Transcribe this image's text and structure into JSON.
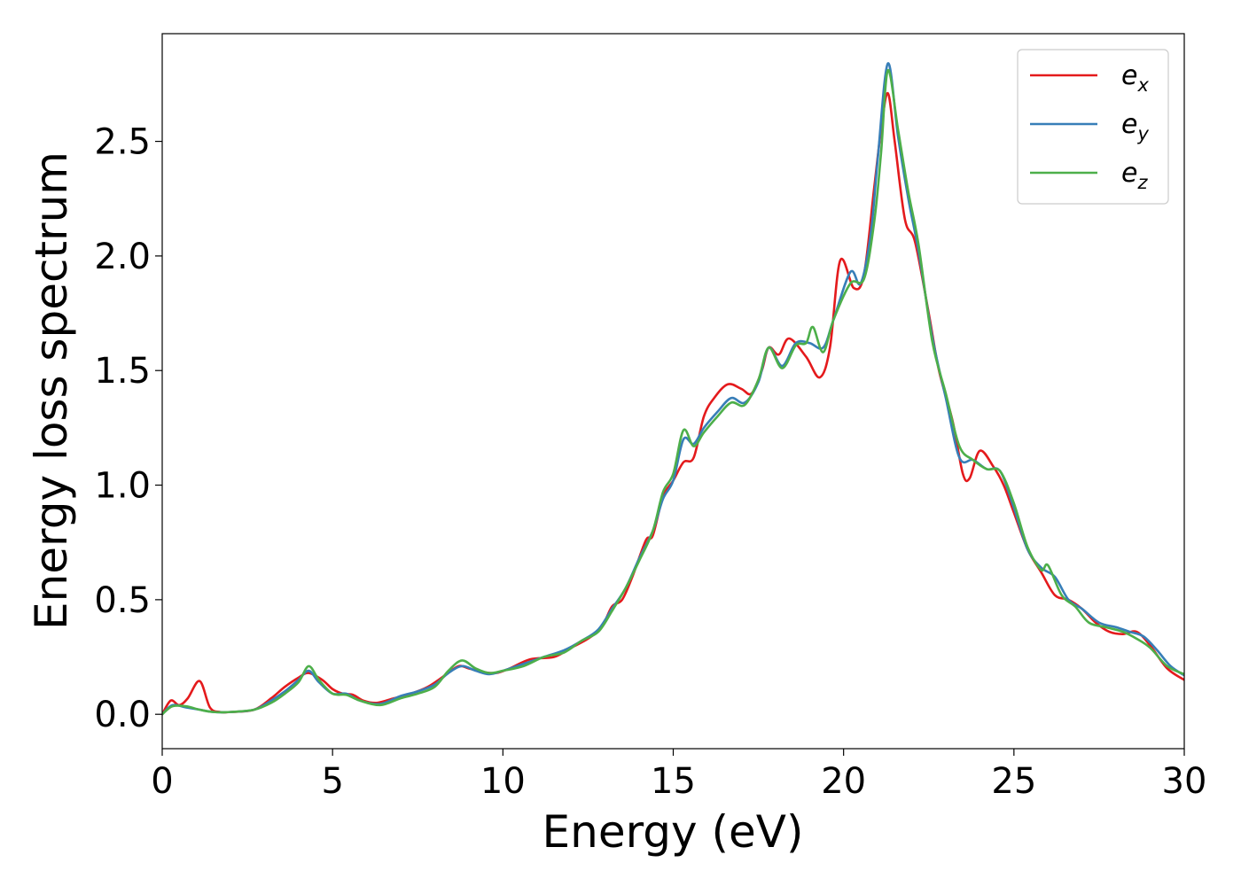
{
  "chart_data": {
    "type": "line",
    "title": "",
    "xlabel": "Energy (eV)",
    "ylabel": "Energy loss spectrum",
    "xlim": [
      0,
      30
    ],
    "ylim": [
      -0.15,
      2.97
    ],
    "xticks": [
      0,
      5,
      10,
      15,
      20,
      25,
      30
    ],
    "xtick_labels": [
      "0",
      "5",
      "10",
      "15",
      "20",
      "25",
      "30"
    ],
    "yticks": [
      0.0,
      0.5,
      1.0,
      1.5,
      2.0,
      2.5
    ],
    "ytick_labels": [
      "0.0",
      "0.5",
      "1.0",
      "1.5",
      "2.0",
      "2.5"
    ],
    "grid": false,
    "legend_position": "top-right",
    "series": [
      {
        "name": "e",
        "subscript": "x",
        "color": "#e41a1c",
        "points": [
          [
            0,
            0
          ],
          [
            0.25,
            0.06
          ],
          [
            0.5,
            0.04
          ],
          [
            0.75,
            0.07
          ],
          [
            1.1,
            0.145
          ],
          [
            1.4,
            0.03
          ],
          [
            1.7,
            0.01
          ],
          [
            2.0,
            0.01
          ],
          [
            2.7,
            0.02
          ],
          [
            3.2,
            0.07
          ],
          [
            3.6,
            0.12
          ],
          [
            4.0,
            0.16
          ],
          [
            4.3,
            0.18
          ],
          [
            4.7,
            0.15
          ],
          [
            5.0,
            0.11
          ],
          [
            5.3,
            0.09
          ],
          [
            5.6,
            0.085
          ],
          [
            5.9,
            0.06
          ],
          [
            6.3,
            0.05
          ],
          [
            6.8,
            0.07
          ],
          [
            7.3,
            0.09
          ],
          [
            7.8,
            0.12
          ],
          [
            8.3,
            0.17
          ],
          [
            8.7,
            0.21
          ],
          [
            9.0,
            0.2
          ],
          [
            9.4,
            0.185
          ],
          [
            9.8,
            0.18
          ],
          [
            10.2,
            0.2
          ],
          [
            10.8,
            0.24
          ],
          [
            11.5,
            0.25
          ],
          [
            12.0,
            0.29
          ],
          [
            12.5,
            0.33
          ],
          [
            12.9,
            0.38
          ],
          [
            13.2,
            0.47
          ],
          [
            13.5,
            0.5
          ],
          [
            13.8,
            0.6
          ],
          [
            14.2,
            0.76
          ],
          [
            14.4,
            0.78
          ],
          [
            14.7,
            0.95
          ],
          [
            15.0,
            1.02
          ],
          [
            15.3,
            1.1
          ],
          [
            15.6,
            1.12
          ],
          [
            15.9,
            1.3
          ],
          [
            16.2,
            1.38
          ],
          [
            16.6,
            1.44
          ],
          [
            17.0,
            1.42
          ],
          [
            17.3,
            1.4
          ],
          [
            17.6,
            1.5
          ],
          [
            17.8,
            1.6
          ],
          [
            18.1,
            1.57
          ],
          [
            18.4,
            1.64
          ],
          [
            18.9,
            1.56
          ],
          [
            19.3,
            1.47
          ],
          [
            19.6,
            1.6
          ],
          [
            19.9,
            1.98
          ],
          [
            20.3,
            1.86
          ],
          [
            20.6,
            1.92
          ],
          [
            20.9,
            2.3
          ],
          [
            21.1,
            2.55
          ],
          [
            21.3,
            2.71
          ],
          [
            21.5,
            2.5
          ],
          [
            21.8,
            2.16
          ],
          [
            22.1,
            2.06
          ],
          [
            22.5,
            1.75
          ],
          [
            22.8,
            1.5
          ],
          [
            23.2,
            1.28
          ],
          [
            23.5,
            1.05
          ],
          [
            23.7,
            1.03
          ],
          [
            24.0,
            1.15
          ],
          [
            24.4,
            1.08
          ],
          [
            24.7,
            1.0
          ],
          [
            25.0,
            0.88
          ],
          [
            25.4,
            0.72
          ],
          [
            25.8,
            0.62
          ],
          [
            26.2,
            0.52
          ],
          [
            26.6,
            0.5
          ],
          [
            27.0,
            0.46
          ],
          [
            27.4,
            0.4
          ],
          [
            27.8,
            0.36
          ],
          [
            28.2,
            0.35
          ],
          [
            28.6,
            0.36
          ],
          [
            29.0,
            0.3
          ],
          [
            29.5,
            0.2
          ],
          [
            30.0,
            0.15
          ]
        ]
      },
      {
        "name": "e",
        "subscript": "y",
        "color": "#377eb8",
        "points": [
          [
            0,
            0
          ],
          [
            0.3,
            0.04
          ],
          [
            0.7,
            0.03
          ],
          [
            1.1,
            0.02
          ],
          [
            1.5,
            0.01
          ],
          [
            2.0,
            0.01
          ],
          [
            2.7,
            0.02
          ],
          [
            3.2,
            0.06
          ],
          [
            3.6,
            0.1
          ],
          [
            4.0,
            0.15
          ],
          [
            4.3,
            0.19
          ],
          [
            4.6,
            0.14
          ],
          [
            5.0,
            0.09
          ],
          [
            5.4,
            0.09
          ],
          [
            5.8,
            0.06
          ],
          [
            6.4,
            0.045
          ],
          [
            7.0,
            0.08
          ],
          [
            7.5,
            0.1
          ],
          [
            8.0,
            0.13
          ],
          [
            8.4,
            0.18
          ],
          [
            8.8,
            0.21
          ],
          [
            9.2,
            0.19
          ],
          [
            9.6,
            0.175
          ],
          [
            10.0,
            0.19
          ],
          [
            10.6,
            0.22
          ],
          [
            11.2,
            0.25
          ],
          [
            11.8,
            0.28
          ],
          [
            12.3,
            0.32
          ],
          [
            12.8,
            0.37
          ],
          [
            13.2,
            0.46
          ],
          [
            13.6,
            0.55
          ],
          [
            14.0,
            0.68
          ],
          [
            14.4,
            0.8
          ],
          [
            14.7,
            0.94
          ],
          [
            15.0,
            1.02
          ],
          [
            15.3,
            1.2
          ],
          [
            15.6,
            1.18
          ],
          [
            15.9,
            1.25
          ],
          [
            16.3,
            1.32
          ],
          [
            16.7,
            1.38
          ],
          [
            17.1,
            1.36
          ],
          [
            17.5,
            1.45
          ],
          [
            17.8,
            1.6
          ],
          [
            18.2,
            1.52
          ],
          [
            18.6,
            1.62
          ],
          [
            19.0,
            1.62
          ],
          [
            19.4,
            1.6
          ],
          [
            19.7,
            1.72
          ],
          [
            20.2,
            1.93
          ],
          [
            20.5,
            1.88
          ],
          [
            20.8,
            2.1
          ],
          [
            21.0,
            2.42
          ],
          [
            21.3,
            2.84
          ],
          [
            21.6,
            2.52
          ],
          [
            21.9,
            2.25
          ],
          [
            22.2,
            2.02
          ],
          [
            22.6,
            1.65
          ],
          [
            23.0,
            1.38
          ],
          [
            23.4,
            1.12
          ],
          [
            23.8,
            1.11
          ],
          [
            24.2,
            1.07
          ],
          [
            24.6,
            1.06
          ],
          [
            25.0,
            0.9
          ],
          [
            25.4,
            0.72
          ],
          [
            25.8,
            0.64
          ],
          [
            26.2,
            0.6
          ],
          [
            26.6,
            0.5
          ],
          [
            27.0,
            0.46
          ],
          [
            27.5,
            0.4
          ],
          [
            28.0,
            0.38
          ],
          [
            28.4,
            0.36
          ],
          [
            28.8,
            0.34
          ],
          [
            29.2,
            0.28
          ],
          [
            29.6,
            0.21
          ],
          [
            30.0,
            0.17
          ]
        ]
      },
      {
        "name": "e",
        "subscript": "z",
        "color": "#4daf4a",
        "points": [
          [
            0,
            0
          ],
          [
            0.3,
            0.035
          ],
          [
            0.7,
            0.035
          ],
          [
            1.1,
            0.02
          ],
          [
            1.5,
            0.01
          ],
          [
            2.0,
            0.01
          ],
          [
            2.7,
            0.02
          ],
          [
            3.2,
            0.05
          ],
          [
            3.6,
            0.09
          ],
          [
            4.0,
            0.14
          ],
          [
            4.3,
            0.21
          ],
          [
            4.6,
            0.15
          ],
          [
            5.0,
            0.09
          ],
          [
            5.4,
            0.085
          ],
          [
            5.8,
            0.06
          ],
          [
            6.4,
            0.04
          ],
          [
            7.0,
            0.07
          ],
          [
            7.5,
            0.09
          ],
          [
            8.0,
            0.12
          ],
          [
            8.4,
            0.19
          ],
          [
            8.8,
            0.235
          ],
          [
            9.2,
            0.2
          ],
          [
            9.6,
            0.18
          ],
          [
            10.0,
            0.19
          ],
          [
            10.6,
            0.21
          ],
          [
            11.2,
            0.25
          ],
          [
            11.8,
            0.27
          ],
          [
            12.3,
            0.32
          ],
          [
            12.8,
            0.36
          ],
          [
            13.2,
            0.45
          ],
          [
            13.6,
            0.55
          ],
          [
            14.0,
            0.67
          ],
          [
            14.4,
            0.8
          ],
          [
            14.7,
            0.97
          ],
          [
            15.0,
            1.05
          ],
          [
            15.3,
            1.24
          ],
          [
            15.6,
            1.17
          ],
          [
            15.9,
            1.23
          ],
          [
            16.3,
            1.3
          ],
          [
            16.7,
            1.36
          ],
          [
            17.1,
            1.35
          ],
          [
            17.5,
            1.46
          ],
          [
            17.8,
            1.6
          ],
          [
            18.2,
            1.51
          ],
          [
            18.6,
            1.61
          ],
          [
            18.9,
            1.62
          ],
          [
            19.1,
            1.69
          ],
          [
            19.4,
            1.58
          ],
          [
            19.7,
            1.72
          ],
          [
            20.2,
            1.88
          ],
          [
            20.6,
            1.9
          ],
          [
            20.9,
            2.15
          ],
          [
            21.1,
            2.45
          ],
          [
            21.3,
            2.81
          ],
          [
            21.6,
            2.55
          ],
          [
            21.9,
            2.28
          ],
          [
            22.2,
            2.05
          ],
          [
            22.6,
            1.63
          ],
          [
            23.0,
            1.4
          ],
          [
            23.4,
            1.17
          ],
          [
            23.8,
            1.11
          ],
          [
            24.2,
            1.07
          ],
          [
            24.6,
            1.06
          ],
          [
            25.0,
            0.92
          ],
          [
            25.4,
            0.73
          ],
          [
            25.8,
            0.63
          ],
          [
            26.0,
            0.65
          ],
          [
            26.4,
            0.52
          ],
          [
            26.8,
            0.47
          ],
          [
            27.2,
            0.4
          ],
          [
            27.7,
            0.38
          ],
          [
            28.2,
            0.36
          ],
          [
            28.6,
            0.33
          ],
          [
            29.0,
            0.29
          ],
          [
            29.5,
            0.21
          ],
          [
            30.0,
            0.175
          ]
        ]
      }
    ]
  }
}
